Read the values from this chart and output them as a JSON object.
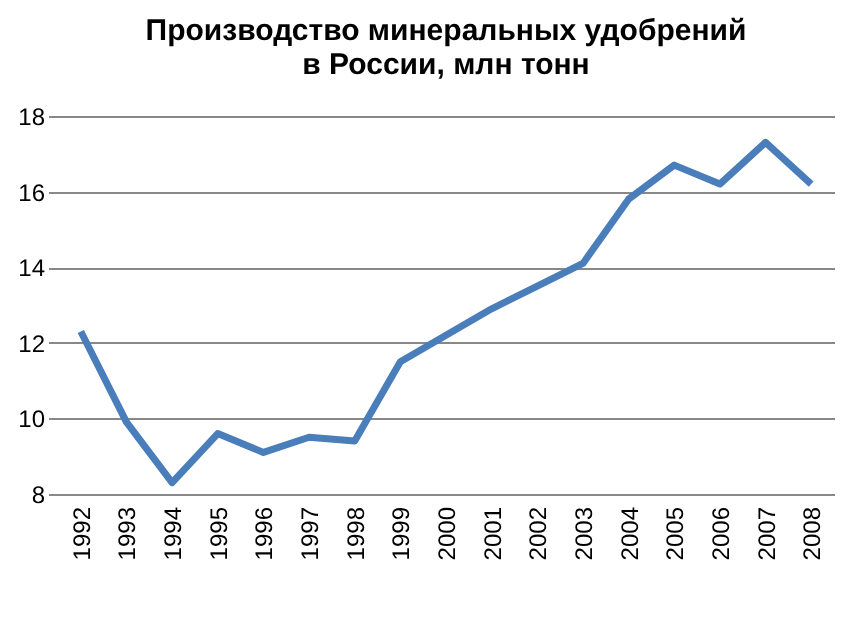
{
  "chart_data": {
    "type": "line",
    "title": [
      "Производство минеральных удобрений",
      "в России, млн тонн"
    ],
    "categories": [
      "1992",
      "1993",
      "1994",
      "1995",
      "1996",
      "1997",
      "1998",
      "1999",
      "2000",
      "2001",
      "2002",
      "2003",
      "2004",
      "2005",
      "2006",
      "2007",
      "2008"
    ],
    "series": [
      {
        "color": "#4a7ebb",
        "values": [
          12.3,
          9.9,
          8.3,
          9.6,
          9.1,
          9.5,
          9.4,
          11.5,
          12.2,
          12.9,
          13.5,
          14.1,
          15.8,
          16.7,
          16.2,
          17.3,
          16.2
        ]
      }
    ],
    "ylim": [
      8,
      18
    ],
    "yticks": [
      8,
      10,
      12,
      14,
      16,
      18
    ],
    "grid": "y",
    "marker": "none",
    "line_style": "solid"
  }
}
